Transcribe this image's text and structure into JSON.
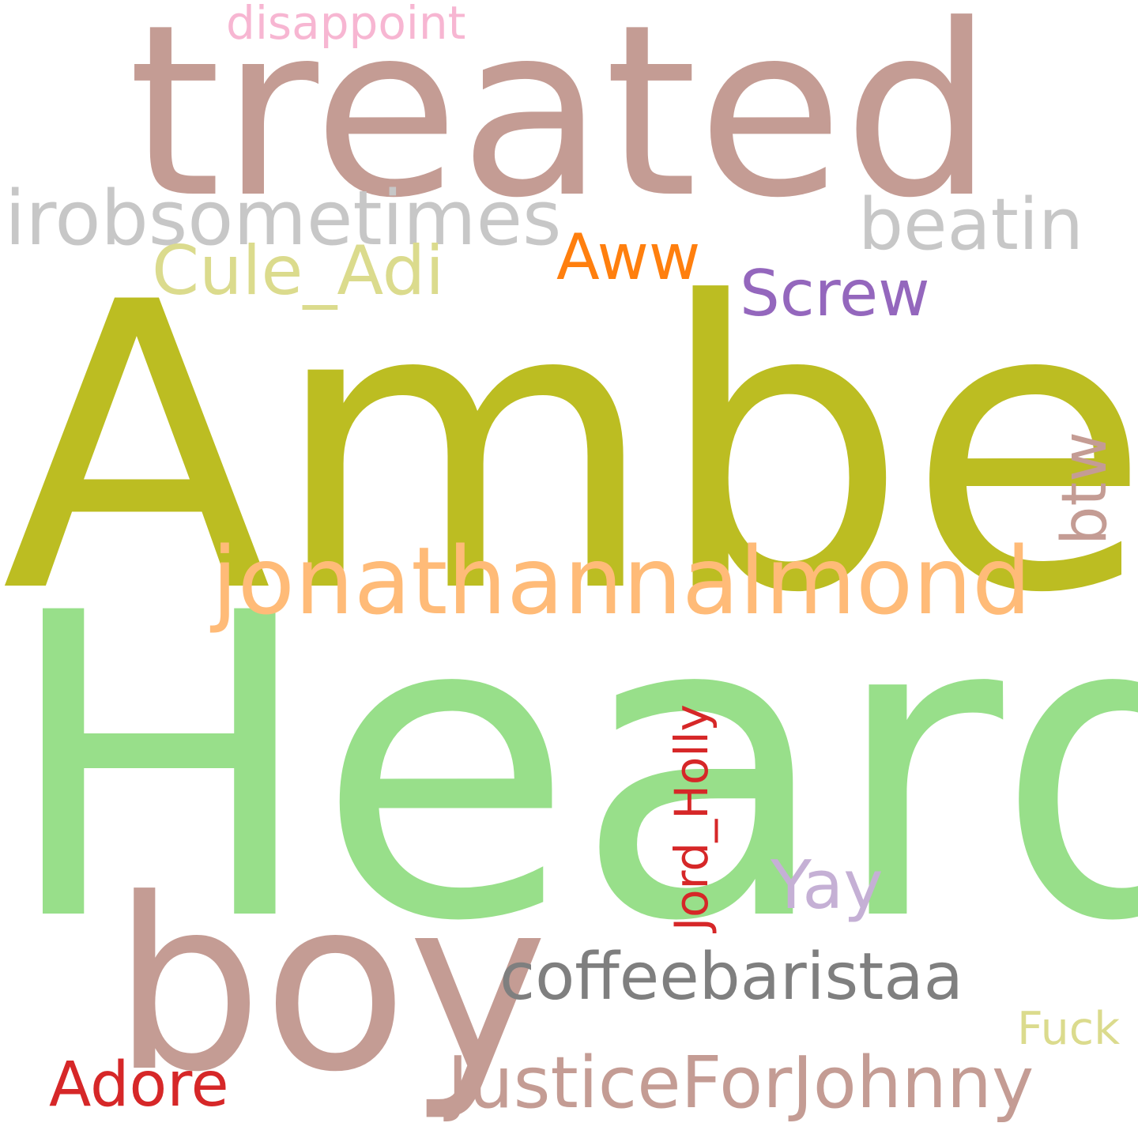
{
  "words": {
    "amber": {
      "text": "Amber",
      "color": "#bcbd22"
    },
    "heard": {
      "text": "Heard",
      "color": "#98df8a"
    },
    "treated": {
      "text": "treated",
      "color": "#c49c94"
    },
    "boy": {
      "text": "boy",
      "color": "#c49c94"
    },
    "jona": {
      "text": "jonathannalmond",
      "color": "#ffbb78"
    },
    "irob": {
      "text": "irobsometimes",
      "color": "#c7c7c7"
    },
    "beatin": {
      "text": "beatin",
      "color": "#c7c7c7"
    },
    "coffee": {
      "text": "coffeebaristaa",
      "color": "#7f7f7f"
    },
    "justice": {
      "text": "JusticeForJohnny",
      "color": "#c49c94"
    },
    "cule": {
      "text": "Cule_Adi",
      "color": "#dbdb8d"
    },
    "screw": {
      "text": "Screw",
      "color": "#9467bd"
    },
    "aww": {
      "text": "Aww",
      "color": "#ff7f0e"
    },
    "adore": {
      "text": "Adore",
      "color": "#d62728"
    },
    "yay": {
      "text": "Yay",
      "color": "#c5b0d5"
    },
    "disap": {
      "text": "disappoint",
      "color": "#f7b6d2"
    },
    "fuck": {
      "text": "Fuck",
      "color": "#dbdb8d"
    },
    "btw": {
      "text": "btw",
      "color": "#c49c94",
      "orientation": "vertical"
    },
    "jord": {
      "text": "Jord_Holly",
      "color": "#d62728",
      "orientation": "vertical"
    }
  }
}
